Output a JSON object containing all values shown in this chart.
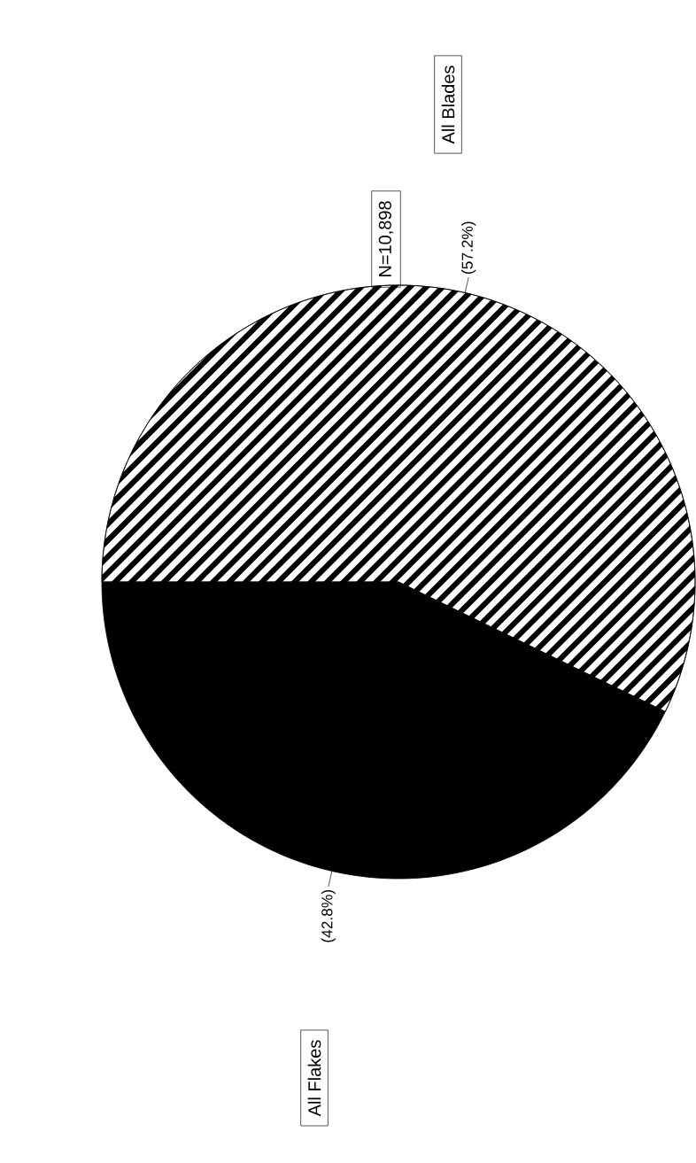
{
  "chart_data": {
    "type": "pie",
    "categories": [
      "All Blades",
      "All Flakes"
    ],
    "values": [
      57.2,
      42.8
    ],
    "colors": [
      "#ffffff",
      "#000000"
    ],
    "value_labels": [
      "(57.2%)",
      "(42.8%)"
    ],
    "annotations": [
      "N=10,898"
    ]
  }
}
